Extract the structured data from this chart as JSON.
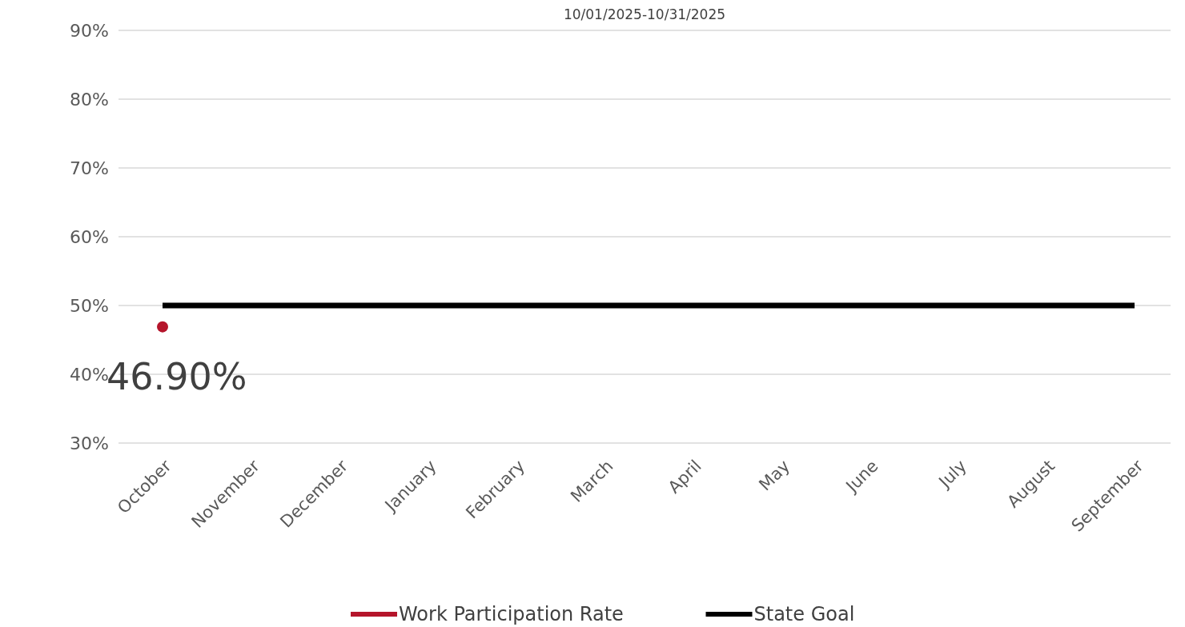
{
  "chart_data": {
    "type": "line",
    "subtitle": "10/01/2025-10/31/2025",
    "categories": [
      "October",
      "November",
      "December",
      "January",
      "February",
      "March",
      "April",
      "May",
      "June",
      "July",
      "August",
      "September"
    ],
    "series": [
      {
        "name": "Work Participation Rate",
        "color": "#b5152b",
        "marker": "circle",
        "values": [
          46.9,
          null,
          null,
          null,
          null,
          null,
          null,
          null,
          null,
          null,
          null,
          null
        ],
        "value_labels": [
          "46.90%",
          null,
          null,
          null,
          null,
          null,
          null,
          null,
          null,
          null,
          null,
          null
        ]
      },
      {
        "name": "State Goal",
        "color": "#000000",
        "marker": "none",
        "values": [
          50,
          50,
          50,
          50,
          50,
          50,
          50,
          50,
          50,
          50,
          50,
          50
        ]
      }
    ],
    "ylim": [
      30,
      90
    ],
    "yticks": [
      {
        "value": 30,
        "label": "30%"
      },
      {
        "value": 40,
        "label": "40%"
      },
      {
        "value": 50,
        "label": "50%"
      },
      {
        "value": 60,
        "label": "60%"
      },
      {
        "value": 70,
        "label": "70%"
      },
      {
        "value": 80,
        "label": "80%"
      },
      {
        "value": 90,
        "label": "90%"
      }
    ],
    "grid": "y",
    "legend": "bottom"
  }
}
